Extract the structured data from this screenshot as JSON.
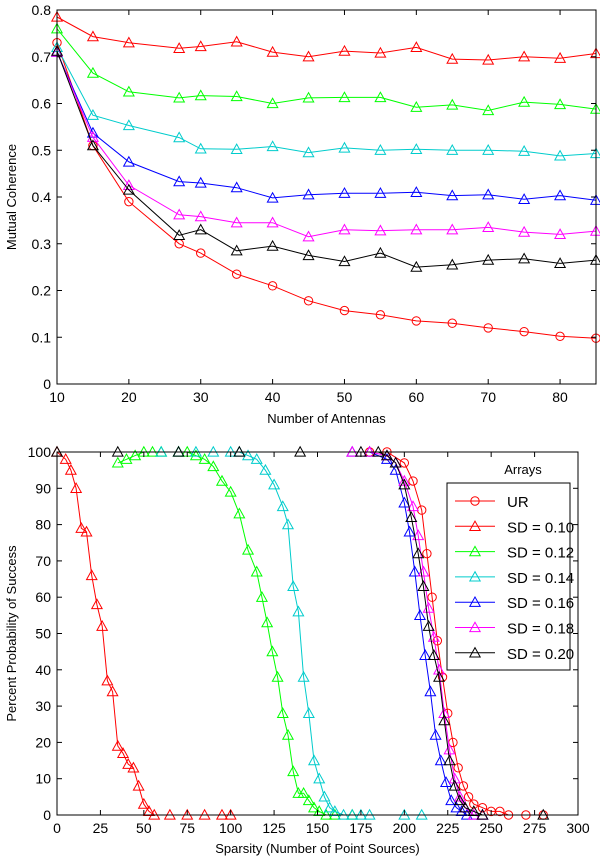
{
  "chart_data": [
    {
      "type": "line",
      "xlabel": "Number of Antennas",
      "ylabel": "Mutual Coherence",
      "xlim": [
        10,
        85
      ],
      "ylim": [
        0,
        0.8
      ],
      "xticks": [
        10,
        20,
        30,
        40,
        50,
        60,
        70,
        80
      ],
      "yticks": [
        0,
        0.1,
        0.2,
        0.3,
        0.4,
        0.5,
        0.6,
        0.7,
        0.8
      ],
      "xtick_labels": [
        "10",
        "20",
        "30",
        "40",
        "50",
        "60",
        "70",
        "80"
      ],
      "ytick_labels": [
        "0",
        "0.1",
        "0.2",
        "0.3",
        "0.4",
        "0.5",
        "0.6",
        "0.7",
        "0.8"
      ],
      "x": [
        10,
        15,
        20,
        27,
        30,
        35,
        40,
        45,
        50,
        55,
        60,
        65,
        70,
        75,
        80,
        85
      ],
      "series": [
        {
          "name": "UR",
          "color": "#ff0000",
          "marker": "circle",
          "values": [
            0.73,
            0.51,
            0.39,
            0.3,
            0.28,
            0.235,
            0.21,
            0.178,
            0.157,
            0.148,
            0.135,
            0.13,
            0.12,
            0.112,
            0.102,
            0.098
          ]
        },
        {
          "name": "SD = 0.10",
          "color": "#ff0000",
          "marker": "triangle",
          "values": [
            0.785,
            0.743,
            0.73,
            0.718,
            0.722,
            0.732,
            0.71,
            0.7,
            0.712,
            0.708,
            0.72,
            0.695,
            0.693,
            0.7,
            0.697,
            0.707
          ]
        },
        {
          "name": "SD = 0.12",
          "color": "#00ff00",
          "marker": "triangle",
          "values": [
            0.76,
            0.665,
            0.625,
            0.612,
            0.617,
            0.615,
            0.6,
            0.612,
            0.613,
            0.613,
            0.592,
            0.597,
            0.585,
            0.603,
            0.598,
            0.588
          ]
        },
        {
          "name": "SD = 0.14",
          "color": "#00cccc",
          "marker": "triangle",
          "values": [
            0.72,
            0.575,
            0.553,
            0.527,
            0.503,
            0.502,
            0.508,
            0.495,
            0.505,
            0.5,
            0.502,
            0.5,
            0.5,
            0.498,
            0.488,
            0.493
          ]
        },
        {
          "name": "SD = 0.16",
          "color": "#0000ff",
          "marker": "triangle",
          "values": [
            0.71,
            0.537,
            0.475,
            0.433,
            0.43,
            0.42,
            0.398,
            0.405,
            0.408,
            0.408,
            0.41,
            0.403,
            0.405,
            0.395,
            0.403,
            0.393
          ]
        },
        {
          "name": "SD = 0.18",
          "color": "#ff00ff",
          "marker": "triangle",
          "values": [
            0.71,
            0.528,
            0.425,
            0.362,
            0.358,
            0.345,
            0.345,
            0.315,
            0.33,
            0.328,
            0.33,
            0.33,
            0.335,
            0.325,
            0.32,
            0.327
          ]
        },
        {
          "name": "SD = 0.20",
          "color": "#000000",
          "marker": "triangle",
          "values": [
            0.712,
            0.51,
            0.415,
            0.318,
            0.33,
            0.285,
            0.295,
            0.275,
            0.262,
            0.28,
            0.25,
            0.255,
            0.265,
            0.268,
            0.258,
            0.265
          ]
        }
      ]
    },
    {
      "type": "line",
      "xlabel": "Sparsity (Number of Point Sources)",
      "ylabel": "Percent Probability of Success",
      "xlim": [
        0,
        300
      ],
      "ylim": [
        0,
        100
      ],
      "xticks": [
        0,
        25,
        50,
        75,
        100,
        125,
        150,
        175,
        200,
        225,
        250,
        275,
        300
      ],
      "yticks": [
        0,
        10,
        20,
        30,
        40,
        50,
        60,
        70,
        80,
        90,
        100
      ],
      "xtick_labels": [
        "0",
        "25",
        "50",
        "75",
        "100",
        "125",
        "150",
        "175",
        "200",
        "225",
        "250",
        "275",
        "300"
      ],
      "ytick_labels": [
        "0",
        "10",
        "20",
        "30",
        "40",
        "50",
        "60",
        "70",
        "80",
        "90",
        "100"
      ],
      "legend_title": "Arrays",
      "legend_position": "right",
      "series": [
        {
          "name": "UR",
          "color": "#ff0000",
          "marker": "circle",
          "x": [
            180,
            190,
            200,
            205,
            210,
            213,
            216,
            219,
            222,
            225,
            228,
            231,
            234,
            237,
            240,
            245,
            250,
            255,
            260,
            270,
            280
          ],
          "values": [
            100,
            100,
            97,
            92,
            84,
            72,
            60,
            48,
            38,
            28,
            20,
            13,
            8,
            5,
            3,
            2,
            1,
            1,
            0,
            0,
            0
          ]
        },
        {
          "name": "SD = 0.10",
          "color": "#ff0000",
          "marker": "triangle",
          "x": [
            0,
            5,
            8,
            11,
            14,
            17,
            20,
            23,
            26,
            29,
            32,
            35,
            38,
            41,
            44,
            47,
            50,
            53,
            56,
            65,
            75,
            85,
            95,
            100
          ],
          "values": [
            100,
            98,
            95,
            90,
            79,
            78,
            66,
            58,
            52,
            37,
            34,
            19,
            17,
            14,
            13,
            8,
            3,
            1,
            0,
            0,
            0,
            0,
            0,
            0
          ]
        },
        {
          "name": "SD = 0.12",
          "color": "#00ff00",
          "marker": "triangle",
          "x": [
            35,
            40,
            45,
            50,
            55,
            60,
            70,
            75,
            80,
            85,
            90,
            95,
            100,
            105,
            110,
            115,
            118,
            121,
            124,
            127,
            130,
            133,
            136,
            139,
            142,
            145,
            148,
            151,
            155,
            160,
            170
          ],
          "values": [
            97,
            98,
            99,
            100,
            100,
            100,
            100,
            100,
            99,
            98,
            96,
            92,
            89,
            83,
            73,
            67,
            60,
            53,
            45,
            38,
            28,
            22,
            12,
            6,
            6,
            4,
            2,
            1,
            0,
            0,
            0
          ]
        },
        {
          "name": "SD = 0.14",
          "color": "#00cccc",
          "marker": "triangle",
          "x": [
            60,
            70,
            80,
            90,
            100,
            105,
            110,
            115,
            120,
            125,
            130,
            133,
            136,
            139,
            142,
            145,
            148,
            151,
            154,
            157,
            160,
            165,
            170,
            175,
            180,
            200,
            210
          ],
          "values": [
            100,
            100,
            100,
            100,
            100,
            100,
            99,
            98,
            95,
            91,
            85,
            80,
            63,
            56,
            38,
            28,
            15,
            10,
            5,
            2,
            1,
            0,
            0,
            0,
            0,
            0,
            0
          ]
        },
        {
          "name": "SD = 0.16",
          "color": "#0000ff",
          "marker": "triangle",
          "x": [
            170,
            180,
            190,
            195,
            200,
            203,
            206,
            209,
            212,
            215,
            218,
            221,
            224,
            227,
            230,
            233,
            236,
            240,
            245
          ],
          "values": [
            100,
            100,
            98,
            95,
            86,
            78,
            67,
            55,
            44,
            34,
            22,
            15,
            9,
            4,
            2,
            1,
            0,
            0,
            0
          ]
        },
        {
          "name": "SD = 0.18",
          "color": "#ff00ff",
          "marker": "triangle",
          "x": [
            170,
            180,
            190,
            195,
            200,
            205,
            208,
            211,
            214,
            217,
            220,
            223,
            226,
            229,
            232,
            235,
            240,
            245
          ],
          "values": [
            100,
            100,
            99,
            97,
            92,
            85,
            77,
            67,
            57,
            49,
            40,
            28,
            18,
            10,
            5,
            2,
            0,
            0
          ]
        },
        {
          "name": "SD = 0.20",
          "color": "#000000",
          "marker": "triangle",
          "x": [
            0,
            35,
            70,
            105,
            140,
            175,
            185,
            190,
            195,
            200,
            204,
            208,
            211,
            214,
            217,
            220,
            223,
            226,
            229,
            232,
            235,
            240,
            245,
            280
          ],
          "values": [
            100,
            100,
            100,
            100,
            100,
            100,
            100,
            99,
            97,
            91,
            82,
            72,
            63,
            52,
            44,
            38,
            26,
            15,
            8,
            4,
            2,
            1,
            0,
            0
          ]
        }
      ]
    }
  ]
}
